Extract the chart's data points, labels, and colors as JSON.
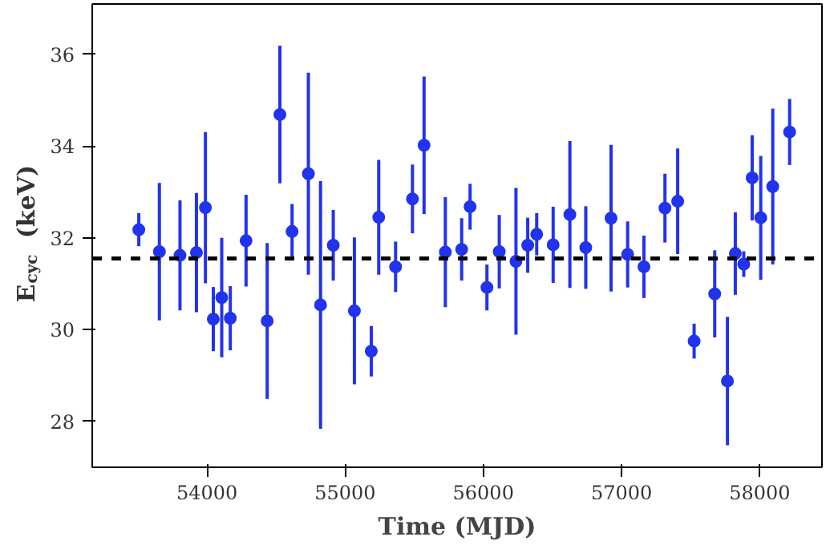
{
  "chart_data": {
    "type": "scatter",
    "xlabel": "Time (MJD)",
    "ylabel": "E$_{cyc}$ (keV)",
    "x": [
      53507,
      53656,
      53805,
      53924,
      53989,
      54046,
      54107,
      54169,
      54283,
      54436,
      54528,
      54616,
      54734,
      54822,
      54914,
      55067,
      55189,
      55243,
      55365,
      55487,
      55571,
      55725,
      55843,
      55904,
      56026,
      56115,
      56236,
      56321,
      56386,
      56505,
      56626,
      56741,
      56924,
      57044,
      57162,
      57314,
      57406,
      57525,
      57674,
      57766,
      57823,
      57884,
      57945,
      58007,
      58094,
      58216
    ],
    "series": [
      {
        "color": "#2233ee",
        "values": [
          32.18,
          31.7,
          31.62,
          31.68,
          32.66,
          30.23,
          30.7,
          30.25,
          31.94,
          30.19,
          34.69,
          32.14,
          33.4,
          30.54,
          31.84,
          30.41,
          29.53,
          32.45,
          31.37,
          32.85,
          34.02,
          31.69,
          31.75,
          32.68,
          30.92,
          31.7,
          31.49,
          31.84,
          32.08,
          31.85,
          32.51,
          31.79,
          32.43,
          31.64,
          31.37,
          32.65,
          32.8,
          29.75,
          30.78,
          28.88,
          31.66,
          31.43,
          33.31,
          32.44,
          33.12,
          34.31
        ],
        "errors": [
          0.36,
          1.5,
          1.2,
          1.3,
          1.65,
          0.7,
          1.3,
          0.7,
          1.0,
          1.7,
          1.5,
          0.6,
          2.2,
          2.7,
          0.77,
          1.6,
          0.55,
          1.25,
          0.55,
          0.75,
          1.5,
          1.2,
          0.68,
          0.5,
          0.5,
          0.8,
          1.6,
          0.6,
          0.46,
          0.83,
          1.6,
          0.9,
          1.6,
          0.72,
          0.68,
          0.75,
          1.15,
          0.38,
          0.95,
          1.4,
          0.9,
          0.28,
          0.93,
          1.35,
          1.7,
          0.72
        ]
      }
    ],
    "marker": "circle",
    "ref_lines": [
      {
        "axis": "y",
        "value": 31.55,
        "color": "#000000",
        "line_style": "dashed"
      }
    ],
    "xlim": [
      53170,
      58450
    ],
    "ylim": [
      27,
      37.1
    ],
    "xticks": [
      54000,
      55000,
      56000,
      57000,
      58000
    ],
    "yticks": [
      28,
      30,
      32,
      34,
      36
    ],
    "grid": false
  }
}
